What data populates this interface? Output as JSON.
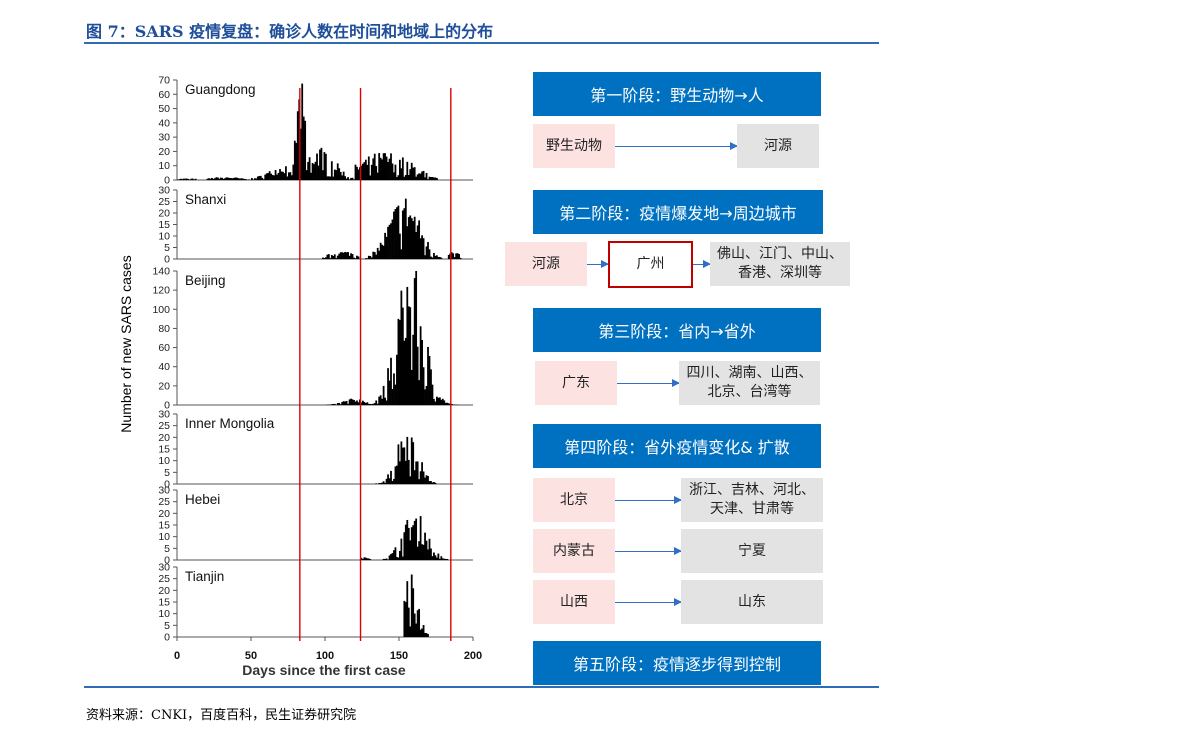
{
  "figure_title": "图 7：SARS 疫情复盘：确诊人数在时间和地域上的分布",
  "source": "资料来源：CNKI，百度百科，民生证券研究院",
  "colors": {
    "accent_blue": "#0070c0",
    "title_blue": "#1f4e9a",
    "marker_red": "#e00000",
    "pink": "#fde2e2",
    "gray": "#e3e3e3"
  },
  "chart_data": {
    "type": "bar",
    "xlabel": "Days since the first case",
    "ylabel": "Number of new SARS cases",
    "xlim": [
      0,
      200
    ],
    "xticks": [
      0,
      50,
      100,
      150,
      200
    ],
    "vlines": [
      83,
      124,
      185
    ],
    "panels": [
      {
        "name": "Guangdong",
        "ymax": 70,
        "yticks": [
          0,
          10,
          20,
          30,
          40,
          50,
          60,
          70
        ],
        "series": [
          {
            "from": 0,
            "to": 12,
            "peak": 1,
            "center": 6,
            "spread": 8
          },
          {
            "from": 20,
            "to": 45,
            "peak": 2,
            "center": 32,
            "spread": 10
          },
          {
            "from": 45,
            "to": 82,
            "peak": 10,
            "center": 75,
            "spread": 12
          },
          {
            "from": 78,
            "to": 92,
            "peak": 60,
            "center": 83,
            "spread": 3
          },
          {
            "from": 88,
            "to": 125,
            "peak": 20,
            "center": 96,
            "spread": 10
          },
          {
            "from": 120,
            "to": 168,
            "peak": 17,
            "center": 140,
            "spread": 18
          },
          {
            "from": 168,
            "to": 175,
            "peak": 2,
            "center": 170,
            "spread": 6
          }
        ]
      },
      {
        "name": "Shanxi",
        "ymax": 30,
        "yticks": [
          0,
          5,
          10,
          15,
          20,
          25,
          30
        ],
        "series": [
          {
            "from": 98,
            "to": 122,
            "peak": 3,
            "center": 112,
            "spread": 10
          },
          {
            "from": 126,
            "to": 178,
            "peak": 24,
            "center": 153,
            "spread": 10
          },
          {
            "from": 183,
            "to": 191,
            "peak": 3,
            "center": 186,
            "spread": 4
          }
        ]
      },
      {
        "name": "Beijing",
        "ymax": 140,
        "yticks": [
          0,
          20,
          40,
          60,
          80,
          100,
          120,
          140
        ],
        "series": [
          {
            "from": 100,
            "to": 128,
            "peak": 6,
            "center": 120,
            "spread": 8
          },
          {
            "from": 125,
            "to": 190,
            "peak": 130,
            "center": 157,
            "spread": 9
          }
        ]
      },
      {
        "name": "Inner Mongolia",
        "ymax": 30,
        "yticks": [
          0,
          5,
          10,
          15,
          20,
          25,
          30
        ],
        "series": [
          {
            "from": 124,
            "to": 174,
            "peak": 22,
            "center": 155,
            "spread": 7
          }
        ]
      },
      {
        "name": "Hebei",
        "ymax": 30,
        "yticks": [
          0,
          5,
          10,
          15,
          20,
          25,
          30
        ],
        "series": [
          {
            "from": 124,
            "to": 130,
            "peak": 1,
            "center": 127,
            "spread": 5
          },
          {
            "from": 138,
            "to": 185,
            "peak": 18,
            "center": 160,
            "spread": 8
          }
        ]
      },
      {
        "name": "Tianjin",
        "ymax": 30,
        "yticks": [
          0,
          5,
          10,
          15,
          20,
          25,
          30
        ],
        "series": [
          {
            "from": 153,
            "to": 169,
            "peak": 24,
            "center": 157,
            "spread": 5
          }
        ]
      }
    ]
  },
  "stages": [
    {
      "title": "第一阶段：野生动物→人",
      "rows": [
        {
          "from": "野生动物",
          "to": "河源"
        }
      ]
    },
    {
      "title": "第二阶段：疫情爆发地→周边城市",
      "rows": [
        {
          "from": "河源",
          "mid": "广州",
          "to": "佛山、江门、中山、\n香港、深圳等"
        }
      ]
    },
    {
      "title": "第三阶段：省内→省外",
      "rows": [
        {
          "from": "广东",
          "to": "四川、湖南、山西、\n北京、台湾等"
        }
      ]
    },
    {
      "title": "第四阶段：省外疫情变化& 扩散",
      "rows": [
        {
          "from": "北京",
          "to": "浙江、吉林、河北、\n天津、甘肃等"
        },
        {
          "from": "内蒙古",
          "to": "宁夏"
        },
        {
          "from": "山西",
          "to": "山东"
        }
      ]
    },
    {
      "title": "第五阶段：疫情逐步得到控制",
      "rows": []
    }
  ]
}
